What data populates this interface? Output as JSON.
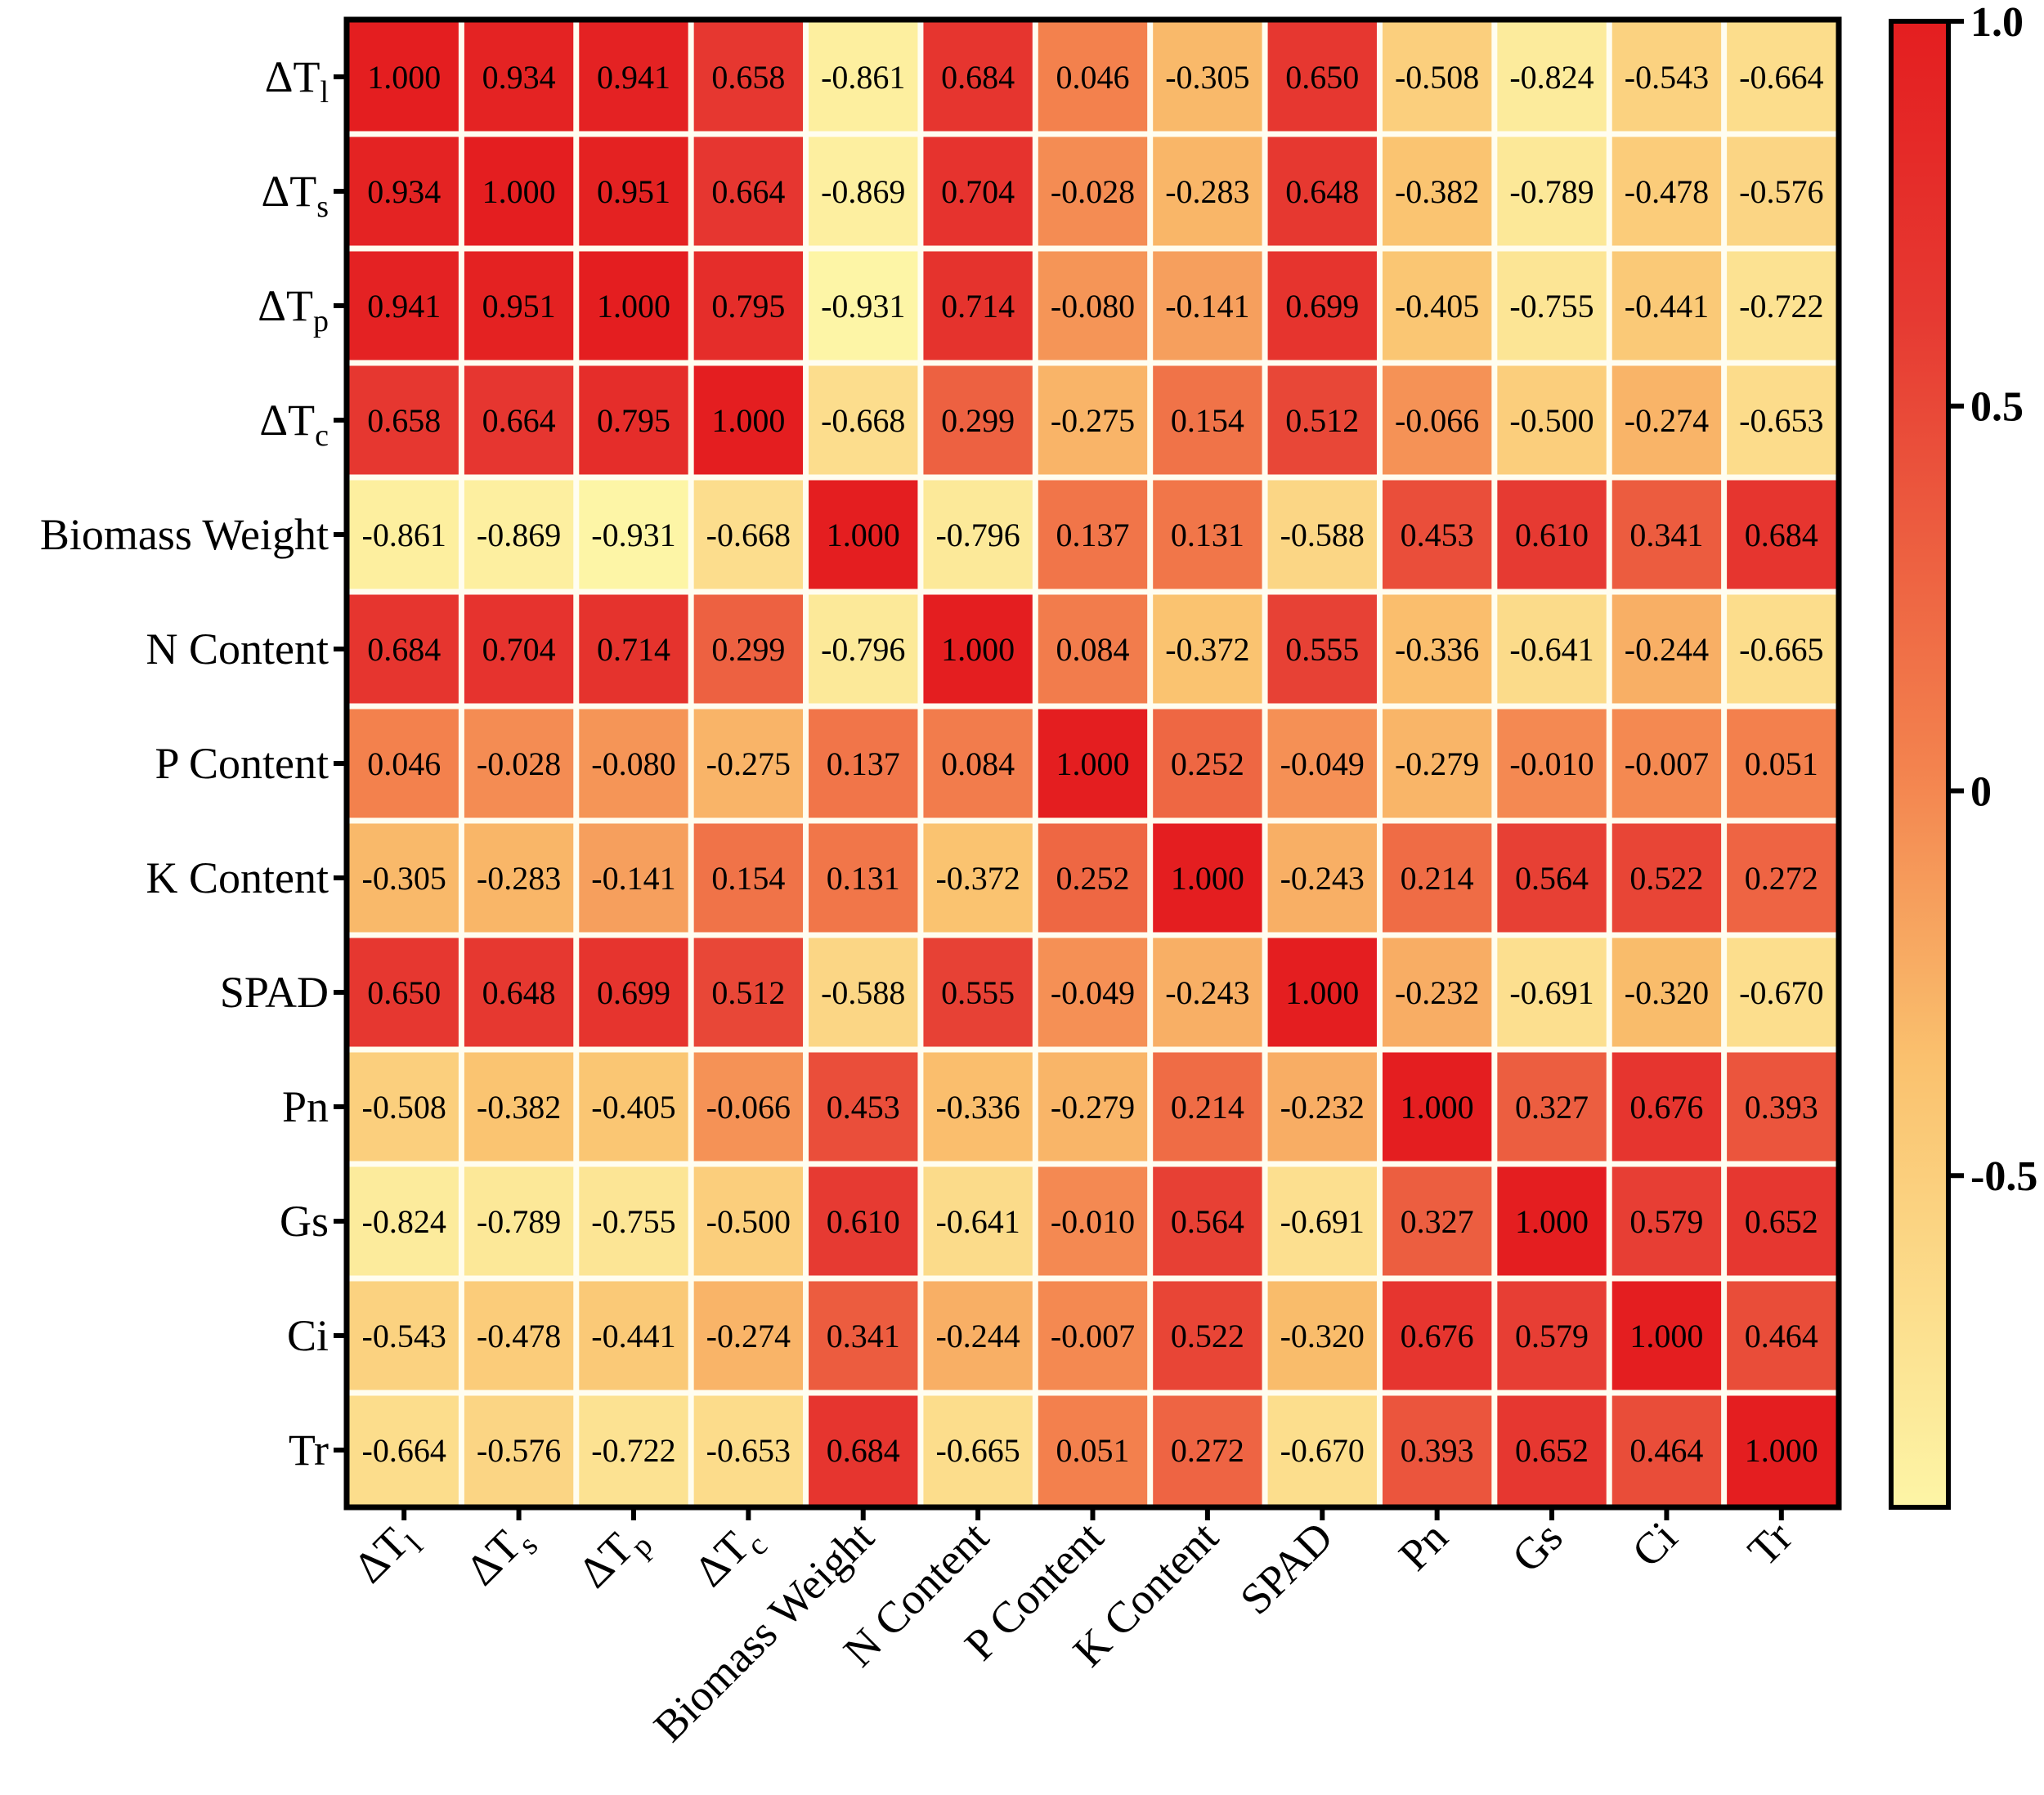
{
  "chart_data": {
    "type": "heatmap",
    "variables": [
      {
        "base": "ΔT",
        "sub": "l"
      },
      {
        "base": "ΔT",
        "sub": "s"
      },
      {
        "base": "ΔT",
        "sub": "p"
      },
      {
        "base": "ΔT",
        "sub": "c"
      },
      {
        "base": "Biomass Weight",
        "sub": ""
      },
      {
        "base": "N Content",
        "sub": ""
      },
      {
        "base": "P Content",
        "sub": ""
      },
      {
        "base": "K Content",
        "sub": ""
      },
      {
        "base": "SPAD",
        "sub": ""
      },
      {
        "base": "Pn",
        "sub": ""
      },
      {
        "base": "Gs",
        "sub": ""
      },
      {
        "base": "Ci",
        "sub": ""
      },
      {
        "base": "Tr",
        "sub": ""
      }
    ],
    "values": [
      [
        "1.000",
        "0.934",
        "0.941",
        "0.658",
        "-0.861",
        "0.684",
        "0.046",
        "-0.305",
        "0.650",
        "-0.508",
        "-0.824",
        "-0.543",
        "-0.664"
      ],
      [
        "0.934",
        "1.000",
        "0.951",
        "0.664",
        "-0.869",
        "0.704",
        "-0.028",
        "-0.283",
        "0.648",
        "-0.382",
        "-0.789",
        "-0.478",
        "-0.576"
      ],
      [
        "0.941",
        "0.951",
        "1.000",
        "0.795",
        "-0.931",
        "0.714",
        "-0.080",
        "-0.141",
        "0.699",
        "-0.405",
        "-0.755",
        "-0.441",
        "-0.722"
      ],
      [
        "0.658",
        "0.664",
        "0.795",
        "1.000",
        "-0.668",
        "0.299",
        "-0.275",
        "0.154",
        "0.512",
        "-0.066",
        "-0.500",
        "-0.274",
        "-0.653"
      ],
      [
        "-0.861",
        "-0.869",
        "-0.931",
        "-0.668",
        "1.000",
        "-0.796",
        "0.137",
        "0.131",
        "-0.588",
        "0.453",
        "0.610",
        "0.341",
        "0.684"
      ],
      [
        "0.684",
        "0.704",
        "0.714",
        "0.299",
        "-0.796",
        "1.000",
        "0.084",
        "-0.372",
        "0.555",
        "-0.336",
        "-0.641",
        "-0.244",
        "-0.665"
      ],
      [
        "0.046",
        "-0.028",
        "-0.080",
        "-0.275",
        "0.137",
        "0.084",
        "1.000",
        "0.252",
        "-0.049",
        "-0.279",
        "-0.010",
        "-0.007",
        "0.051"
      ],
      [
        "-0.305",
        "-0.283",
        "-0.141",
        "0.154",
        "0.131",
        "-0.372",
        "0.252",
        "1.000",
        "-0.243",
        "0.214",
        "0.564",
        "0.522",
        "0.272"
      ],
      [
        "0.650",
        "0.648",
        "0.699",
        "0.512",
        "-0.588",
        "0.555",
        "-0.049",
        "-0.243",
        "1.000",
        "-0.232",
        "-0.691",
        "-0.320",
        "-0.670"
      ],
      [
        "-0.508",
        "-0.382",
        "-0.405",
        "-0.066",
        "0.453",
        "-0.336",
        "-0.279",
        "0.214",
        "-0.232",
        "1.000",
        "0.327",
        "0.676",
        "0.393"
      ],
      [
        "-0.824",
        "-0.789",
        "-0.755",
        "-0.500",
        "0.610",
        "-0.641",
        "-0.010",
        "0.564",
        "-0.691",
        "0.327",
        "1.000",
        "0.579",
        "0.652"
      ],
      [
        "-0.543",
        "-0.478",
        "-0.441",
        "-0.274",
        "0.341",
        "-0.244",
        "-0.007",
        "0.522",
        "-0.320",
        "0.676",
        "0.579",
        "1.000",
        "0.464"
      ],
      [
        "-0.664",
        "-0.576",
        "-0.722",
        "-0.653",
        "0.684",
        "-0.665",
        "0.051",
        "0.272",
        "-0.670",
        "0.393",
        "0.652",
        "0.464",
        "1.000"
      ]
    ],
    "colorbar": {
      "ticks": [
        "1.0",
        "0.5",
        "0",
        "-0.5"
      ],
      "tick_values": [
        1.0,
        0.5,
        0,
        -0.5
      ],
      "range": [
        -0.931,
        1.0
      ],
      "colors": [
        "#FDF5A6",
        "#FAC16E",
        "#F3824E",
        "#E63A32",
        "#E41E20"
      ],
      "color_stops": [
        0,
        0.3,
        0.5,
        0.8,
        1
      ]
    },
    "title": "",
    "xlabel": "",
    "ylabel": ""
  }
}
